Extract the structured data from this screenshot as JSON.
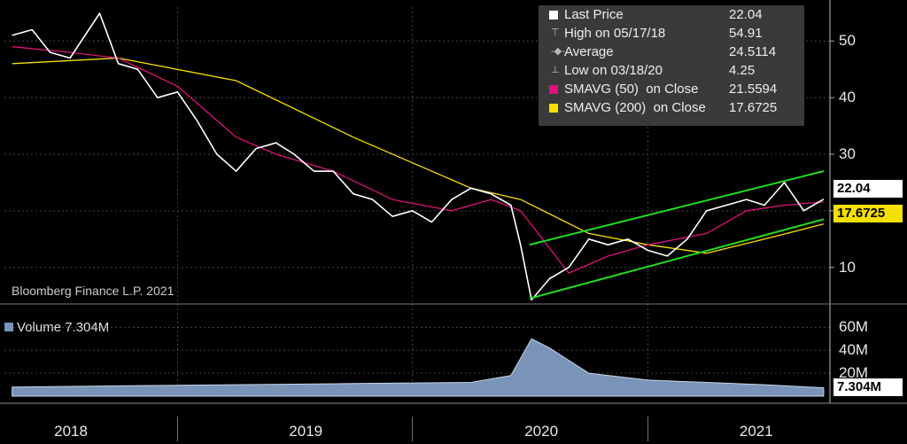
{
  "credit": "Bloomberg Finance L.P. 2021",
  "legend": {
    "last_price": {
      "label": "Last Price",
      "value": "22.04"
    },
    "high": {
      "label": "High on 05/17/18",
      "value": "54.91"
    },
    "average": {
      "label": "Average",
      "value": "24.5114"
    },
    "low": {
      "label": "Low on 03/18/20",
      "value": "4.25"
    },
    "sma50": {
      "label": "SMAVG (50)  on Close",
      "value": "21.5594",
      "color": "#e0117c"
    },
    "sma200": {
      "label": "SMAVG (200)  on Close",
      "value": "17.6725",
      "color": "#f5e100"
    }
  },
  "tags": {
    "last_price": "22.04",
    "sma200": "17.6725",
    "volume": "7.304M"
  },
  "volume_legend": "Volume 7.304M",
  "chart_data": {
    "type": "line",
    "x_tick_labels": [
      "2018",
      "2019",
      "2020",
      "2021"
    ],
    "price_axis": {
      "ticks": [
        10,
        20,
        30,
        40,
        50
      ],
      "tick_labels": [
        "10",
        "",
        "30",
        "40",
        "50"
      ],
      "ylim": [
        4,
        56
      ]
    },
    "volume_axis": {
      "ticks": [
        20,
        40,
        60
      ],
      "tick_labels": [
        "20M",
        "40M",
        "60M"
      ],
      "ylim": [
        0,
        75
      ]
    },
    "series": [
      {
        "name": "Last Price",
        "color": "#ffffff",
        "points": [
          [
            "2018-01-01",
            51
          ],
          [
            "2018-02-01",
            52
          ],
          [
            "2018-03-01",
            48
          ],
          [
            "2018-04-01",
            47
          ],
          [
            "2018-05-17",
            54.91
          ],
          [
            "2018-06-15",
            46
          ],
          [
            "2018-07-15",
            45
          ],
          [
            "2018-08-15",
            40
          ],
          [
            "2018-09-15",
            41
          ],
          [
            "2018-10-15",
            36
          ],
          [
            "2018-11-15",
            30
          ],
          [
            "2018-12-15",
            27
          ],
          [
            "2019-01-15",
            31
          ],
          [
            "2019-02-15",
            32
          ],
          [
            "2019-03-15",
            30
          ],
          [
            "2019-04-15",
            27
          ],
          [
            "2019-05-15",
            27
          ],
          [
            "2019-06-15",
            23
          ],
          [
            "2019-07-15",
            22
          ],
          [
            "2019-08-15",
            19
          ],
          [
            "2019-09-15",
            20
          ],
          [
            "2019-10-15",
            18
          ],
          [
            "2019-11-15",
            22
          ],
          [
            "2019-12-15",
            24
          ],
          [
            "2020-01-15",
            23
          ],
          [
            "2020-02-15",
            21
          ],
          [
            "2020-03-01",
            14
          ],
          [
            "2020-03-18",
            4.25
          ],
          [
            "2020-04-15",
            8
          ],
          [
            "2020-05-15",
            10
          ],
          [
            "2020-06-15",
            15
          ],
          [
            "2020-07-15",
            14
          ],
          [
            "2020-08-15",
            15
          ],
          [
            "2020-09-15",
            13
          ],
          [
            "2020-10-15",
            12
          ],
          [
            "2020-11-15",
            15
          ],
          [
            "2020-12-15",
            20
          ],
          [
            "2021-01-15",
            21
          ],
          [
            "2021-02-15",
            22
          ],
          [
            "2021-03-15",
            21
          ],
          [
            "2021-04-15",
            25
          ],
          [
            "2021-05-15",
            20
          ],
          [
            "2021-06-15",
            22.04
          ]
        ]
      },
      {
        "name": "SMAVG (50)  on Close",
        "color": "#e0117c",
        "points": [
          [
            "2018-01-01",
            49
          ],
          [
            "2018-04-01",
            48
          ],
          [
            "2018-06-15",
            47
          ],
          [
            "2018-09-15",
            42
          ],
          [
            "2018-12-15",
            33
          ],
          [
            "2019-02-15",
            30
          ],
          [
            "2019-05-15",
            27
          ],
          [
            "2019-08-15",
            22
          ],
          [
            "2019-11-15",
            20
          ],
          [
            "2020-01-15",
            22
          ],
          [
            "2020-03-01",
            20
          ],
          [
            "2020-05-15",
            9
          ],
          [
            "2020-07-15",
            12
          ],
          [
            "2020-09-15",
            14
          ],
          [
            "2020-12-15",
            16
          ],
          [
            "2021-02-15",
            20
          ],
          [
            "2021-04-15",
            21
          ],
          [
            "2021-06-15",
            21.5594
          ]
        ]
      },
      {
        "name": "SMAVG (200)  on Close",
        "color": "#f5e100",
        "points": [
          [
            "2018-01-01",
            46
          ],
          [
            "2018-06-15",
            47
          ],
          [
            "2018-12-15",
            43
          ],
          [
            "2019-06-15",
            33
          ],
          [
            "2019-12-15",
            24
          ],
          [
            "2020-03-01",
            22
          ],
          [
            "2020-06-15",
            16
          ],
          [
            "2020-09-15",
            14
          ],
          [
            "2020-12-15",
            12.5
          ],
          [
            "2021-03-15",
            15
          ],
          [
            "2021-06-15",
            17.6725
          ]
        ]
      }
    ],
    "volume": {
      "name": "Volume",
      "color": "#7a94b8",
      "last": "7.304M",
      "points": [
        [
          "2018-01-01",
          8
        ],
        [
          "2018-06-15",
          9
        ],
        [
          "2018-12-15",
          10
        ],
        [
          "2019-06-15",
          11
        ],
        [
          "2019-12-15",
          12
        ],
        [
          "2020-02-15",
          18
        ],
        [
          "2020-03-18",
          50
        ],
        [
          "2020-04-15",
          42
        ],
        [
          "2020-06-15",
          20
        ],
        [
          "2020-09-15",
          14
        ],
        [
          "2020-12-15",
          12
        ],
        [
          "2021-03-15",
          10
        ],
        [
          "2021-06-15",
          7.304
        ]
      ]
    },
    "trend_channel": {
      "color": "#22dd22",
      "upper": [
        [
          "2020-03-15",
          14
        ],
        [
          "2021-06-15",
          27
        ]
      ],
      "lower": [
        [
          "2020-03-15",
          4.5
        ],
        [
          "2021-06-15",
          18.5
        ]
      ]
    }
  }
}
